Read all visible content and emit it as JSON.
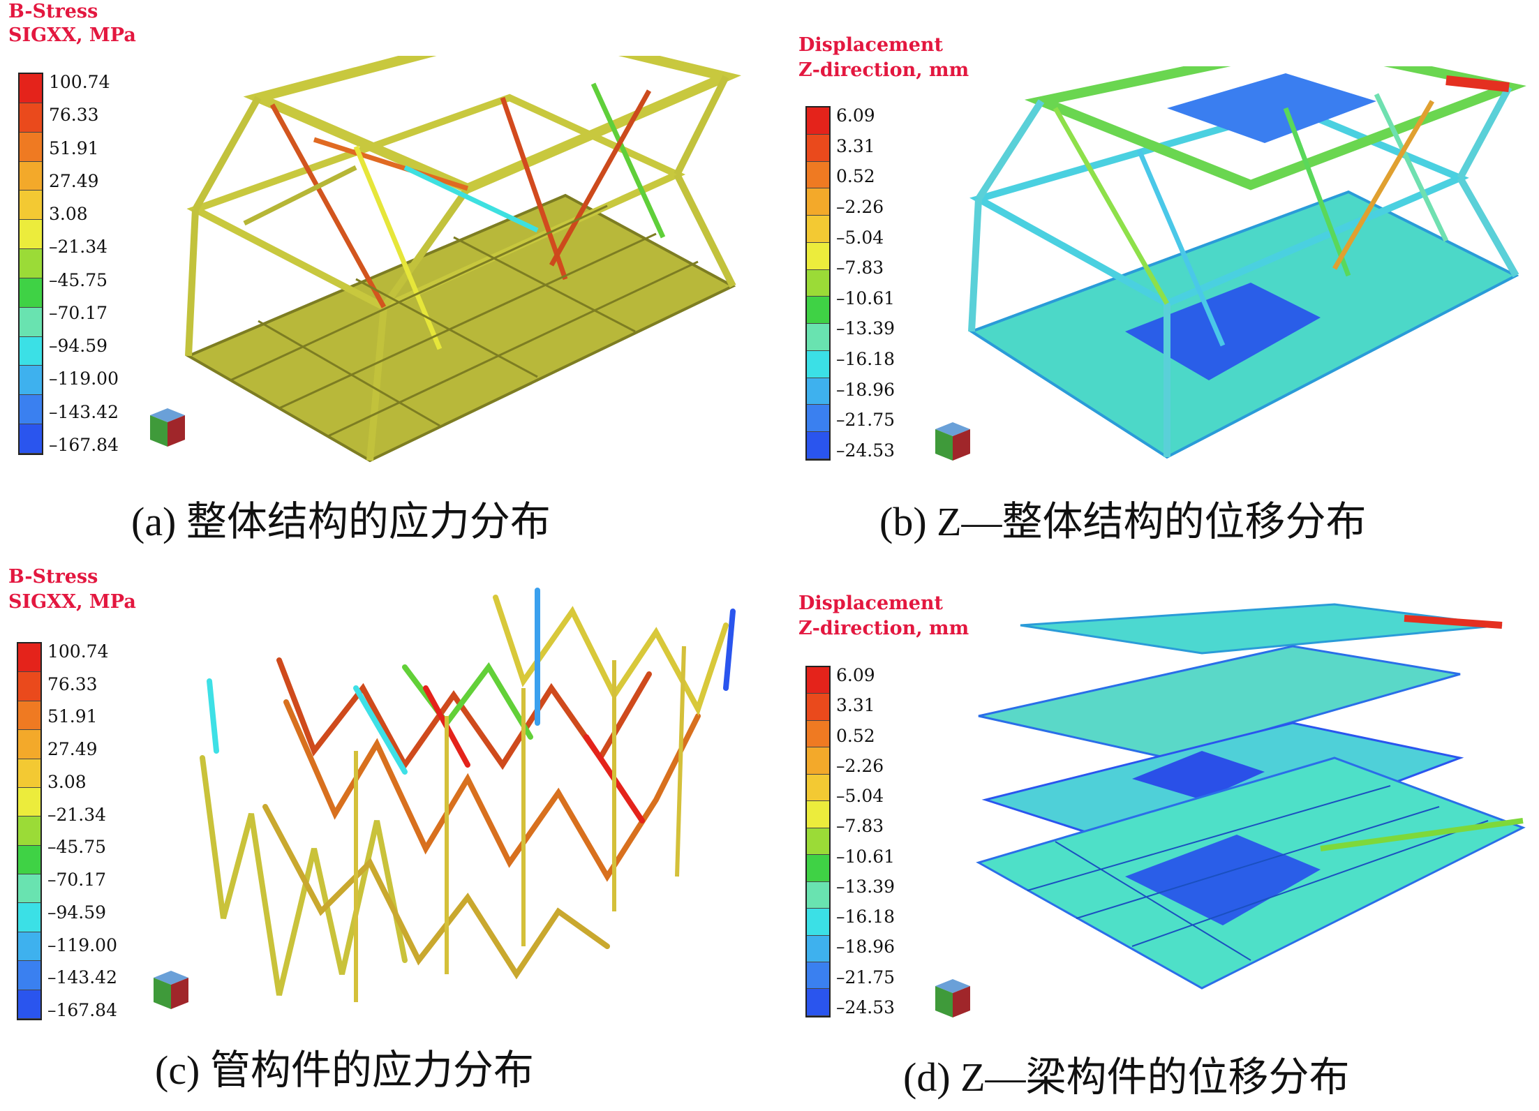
{
  "palettes": {
    "legend_colors": [
      "#e4231b",
      "#ea4a1c",
      "#ef7a22",
      "#f3a92a",
      "#f3c933",
      "#ecec3c",
      "#9bdb37",
      "#3fd245",
      "#69e3b0",
      "#3be0e6",
      "#3eb1ee",
      "#3a80f0",
      "#2a55ee"
    ]
  },
  "panels": [
    {
      "id": "a",
      "legend_title": [
        "B-Stress",
        "SIGXX, MPa"
      ],
      "ticks": [
        "100.74",
        "76.33",
        "51.91",
        "27.49",
        "3.08",
        "-21.34",
        "-45.75",
        "-70.17",
        "-94.59",
        "-119.00",
        "-143.42",
        "-167.84"
      ],
      "caption": "(a) 整体结构的应力分布"
    },
    {
      "id": "b",
      "legend_title": [
        "Displacement",
        "Z-direction, mm"
      ],
      "ticks": [
        "6.09",
        "3.31",
        "0.52",
        "-2.26",
        "-5.04",
        "-7.83",
        "-10.61",
        "-13.39",
        "-16.18",
        "-18.96",
        "-21.75",
        "-24.53"
      ],
      "caption": "(b) Z—整体结构的位移分布"
    },
    {
      "id": "c",
      "legend_title": [
        "B-Stress",
        "SIGXX, MPa"
      ],
      "ticks": [
        "100.74",
        "76.33",
        "51.91",
        "27.49",
        "3.08",
        "-21.34",
        "-45.75",
        "-70.17",
        "-94.59",
        "-119.00",
        "-143.42",
        "-167.84"
      ],
      "caption": "(c) 管构件的应力分布"
    },
    {
      "id": "d",
      "legend_title": [
        "Displacement",
        "Z-direction, mm"
      ],
      "ticks": [
        "6.09",
        "3.31",
        "0.52",
        "-2.26",
        "-5.04",
        "-7.83",
        "-10.61",
        "-13.39",
        "-16.18",
        "-18.96",
        "-21.75",
        "-24.53"
      ],
      "caption": "(d) Z—梁构件的位移分布"
    }
  ]
}
